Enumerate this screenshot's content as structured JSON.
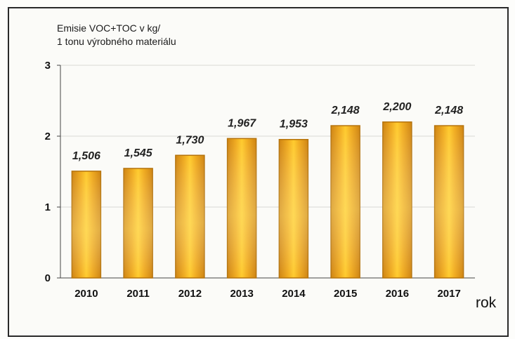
{
  "chart_data": {
    "type": "bar",
    "ylabel_lines": [
      "Emisie VOC+TOC v kg/",
      "1 tonu výrobného materiálu"
    ],
    "xlabel": "rok",
    "categories": [
      "2010",
      "2011",
      "2012",
      "2013",
      "2014",
      "2015",
      "2016",
      "2017"
    ],
    "values": [
      1.506,
      1.545,
      1.73,
      1.967,
      1.953,
      2.148,
      2.2,
      2.148
    ],
    "value_labels": [
      "1,506",
      "1,545",
      "1,730",
      "1,967",
      "1,953",
      "2,148",
      "2,200",
      "2,148"
    ],
    "ylim": [
      0,
      3
    ],
    "yticks": [
      0,
      1,
      2,
      3
    ],
    "ytick_labels": [
      "0",
      "1",
      "2",
      "3"
    ],
    "grid": true,
    "legend": "none",
    "colors": {
      "bar_edge": "#b5740e",
      "bar_center": "#ffc928",
      "bar_outer": "#d48a14",
      "gridline": "#d9d9d4",
      "axis": "#444444"
    }
  }
}
